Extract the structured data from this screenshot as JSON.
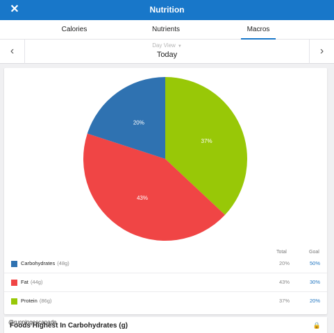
{
  "header": {
    "title": "Nutrition",
    "close_icon": "close-icon"
  },
  "tabs": [
    {
      "label": "Calories",
      "active": false
    },
    {
      "label": "Nutrients",
      "active": false
    },
    {
      "label": "Macros",
      "active": true
    }
  ],
  "dayview": {
    "mode": "Day View",
    "date": "Today",
    "prev_icon": "chevron-left-icon",
    "next_icon": "chevron-right-icon"
  },
  "table_headers": {
    "total": "Total",
    "goal": "Goal"
  },
  "chart_data": {
    "type": "pie",
    "slices": [
      {
        "label": "Protein",
        "value": 37,
        "pct_label": "37%",
        "color": "#98c807"
      },
      {
        "label": "Fat",
        "value": 43,
        "pct_label": "43%",
        "color": "#f04545"
      },
      {
        "label": "Carbohydrates",
        "value": 20,
        "pct_label": "20%",
        "color": "#2f72b1"
      }
    ]
  },
  "macros": [
    {
      "name": "Carbohydrates",
      "amount": "(48g)",
      "total": "20%",
      "goal": "50%",
      "color": "#2f72b1"
    },
    {
      "name": "Fat",
      "amount": "(44g)",
      "total": "43%",
      "goal": "30%",
      "color": "#f04545"
    },
    {
      "name": "Protein",
      "amount": "(86g)",
      "total": "37%",
      "goal": "20%",
      "color": "#98c807"
    }
  ],
  "foods_section": {
    "title": "Foods Highest In Carbohydrates (g)",
    "lock_icon": "lock-icon"
  },
  "watermark": "@runningescapade",
  "colors": {
    "brand": "#1877c9",
    "goal_link": "#1f74c0"
  }
}
